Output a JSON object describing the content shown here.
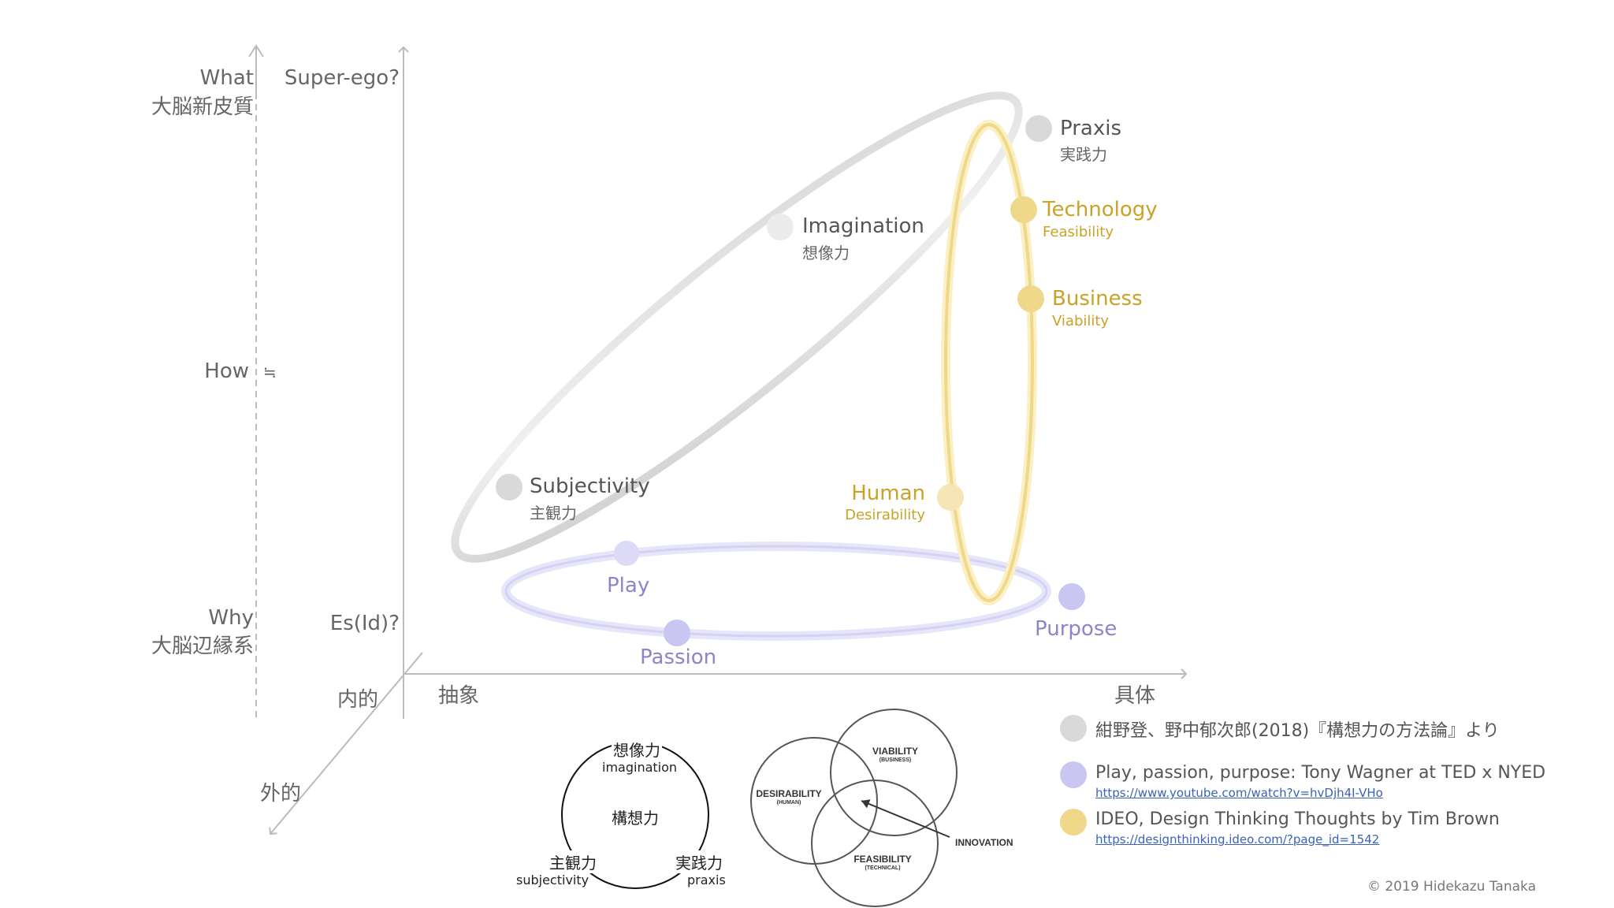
{
  "left_axis": {
    "what_en": "What",
    "what_jp": "大脳新皮質",
    "how_en": "How",
    "how_sym": "≒",
    "why_en": "Why",
    "why_jp": "大脳辺縁系"
  },
  "axes": {
    "top_label": "Super-ego?",
    "bottom_label": "Es(Id)?",
    "origin_label": "内的",
    "abstract_label": "抽象",
    "concrete_label": "具体",
    "outer_label": "外的"
  },
  "gray_nodes": {
    "praxis_en": "Praxis",
    "praxis_jp": "実践力",
    "imagination_en": "Imagination",
    "imagination_jp": "想像力",
    "subjectivity_en": "Subjectivity",
    "subjectivity_jp": "主観力"
  },
  "gold_nodes": {
    "technology_en": "Technology",
    "technology_sub": "Feasibility",
    "business_en": "Business",
    "business_sub": "Viability",
    "human_en": "Human",
    "human_sub": "Desirability"
  },
  "purple_nodes": {
    "play": "Play",
    "passion": "Passion",
    "purpose": "Purpose"
  },
  "small_diagram": {
    "top_jp": "想像力",
    "top_en": "imagination",
    "center": "構想力",
    "left_jp": "主観力",
    "left_en": "subjectivity",
    "right_jp": "実践力",
    "right_en": "praxis"
  },
  "venn": {
    "viability": "VIABILITY",
    "viability_sub": "(BUSINESS)",
    "desirability": "DESIRABILITY",
    "desirability_sub": "(HUMAN)",
    "feasibility": "FEASIBILITY",
    "feasibility_sub": "(TECHNICAL)",
    "innovation": "INNOVATION"
  },
  "legend": [
    {
      "color": "#d9d9d9",
      "text": "紺野登、野中郁次郎(2018)『構想力の方法論』より",
      "link": ""
    },
    {
      "color": "#c9c6f2",
      "text": "Play, passion, purpose: Tony Wagner at TED x NYED",
      "link": "https://www.youtube.com/watch?v=hvDjh4I-VHo"
    },
    {
      "color": "#f0d88a",
      "text": "IDEO, Design Thinking Thoughts by Tim Brown",
      "link": "https://designthinking.ideo.com/?page_id=1542"
    }
  ],
  "copyright": "© 2019 Hidekazu Tanaka",
  "colors": {
    "gray_node": "#d9d9d9",
    "gold_node": "#f0d88a",
    "purple_node": "#c9c6f2",
    "axis": "#bbbbbb"
  }
}
